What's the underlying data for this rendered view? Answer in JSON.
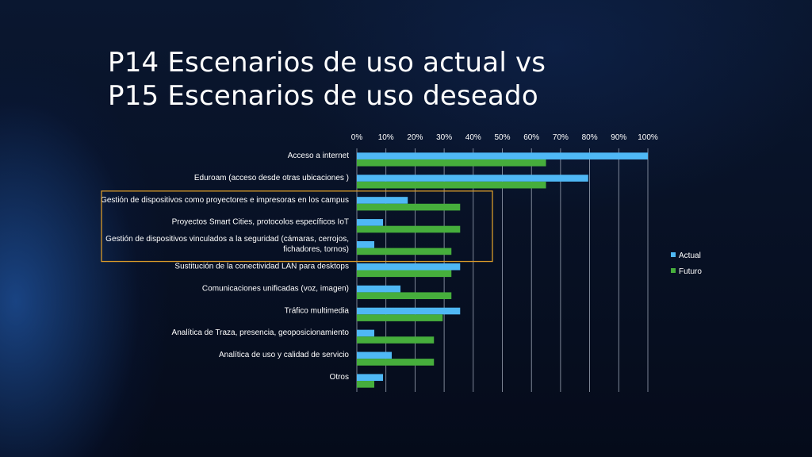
{
  "slide": {
    "title_line1": "P14 Escenarios de uso actual vs",
    "title_line2": "P15 Escenarios de uso deseado"
  },
  "colors": {
    "actual": "#4fb8f5",
    "futuro": "#46ae3c",
    "highlight": "#d89a2a",
    "grid": "#9aa3b3"
  },
  "chart_data": {
    "type": "bar",
    "orientation": "horizontal",
    "x_ticks": [
      "0%",
      "10%",
      "20%",
      "30%",
      "40%",
      "50%",
      "60%",
      "70%",
      "80%",
      "90%",
      "100%"
    ],
    "xlim": [
      0,
      100
    ],
    "grid": true,
    "legend_position": "right",
    "categories": [
      [
        "Acceso a internet"
      ],
      [
        "Eduroam (acceso desde otras ubicaciones )"
      ],
      [
        "Gestión de dispositivos como proyectores e impresoras en los campus"
      ],
      [
        "Proyectos Smart Cities, protocolos específicos IoT"
      ],
      [
        "Gestión de dispositivos vinculados a la seguridad (cámaras, cerrojos,",
        "fichadores, tornos)"
      ],
      [
        "Sustitución de la conectividad LAN para desktops"
      ],
      [
        "Comunicaciones unificadas (voz, imagen)"
      ],
      [
        "Tráfico multimedia"
      ],
      [
        "Analítica de Traza, presencia, geoposicionamiento"
      ],
      [
        "Analítica de uso y calidad de servicio"
      ],
      [
        "Otros"
      ]
    ],
    "series": [
      {
        "name": "Actual",
        "values": [
          100,
          79.5,
          17.5,
          9,
          6,
          35.5,
          15,
          35.5,
          6,
          12,
          9
        ]
      },
      {
        "name": "Futuro",
        "values": [
          65,
          65,
          35.5,
          35.5,
          32.5,
          32.5,
          32.5,
          29.5,
          26.5,
          26.5,
          6
        ]
      }
    ],
    "highlighted_categories": [
      2,
      3,
      4
    ]
  }
}
